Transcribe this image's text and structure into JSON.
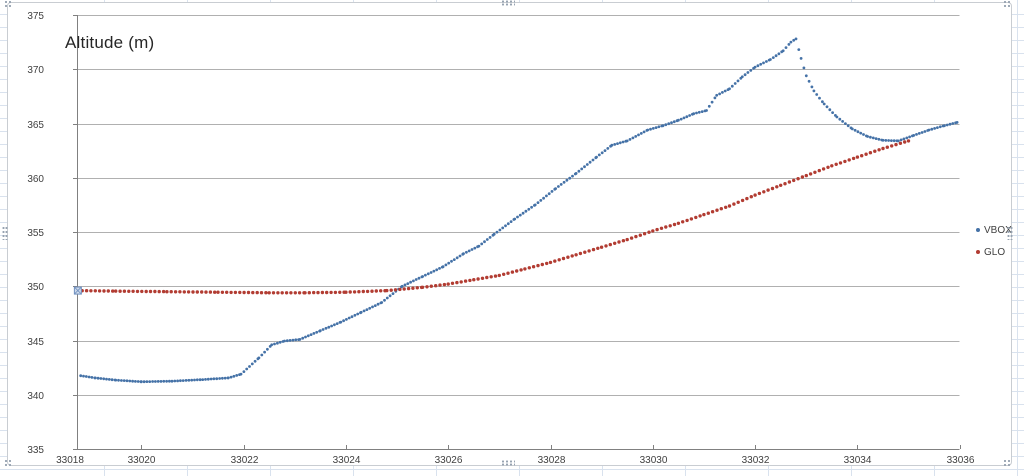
{
  "window": {
    "worksheet_grid_color": "#d9e2ee"
  },
  "chart": {
    "border_color": "#c9cdd2",
    "gridline_color": "#b0b0b0",
    "axis_color": "#808080",
    "tick_label_color": "#404040"
  },
  "chart_data": {
    "type": "scatter",
    "title": "Altitude (m)",
    "xlabel": "",
    "ylabel": "",
    "x_ticks": [
      33018,
      33020,
      33022,
      33024,
      33026,
      33028,
      33030,
      33032,
      33034,
      33036
    ],
    "y_ticks": [
      335,
      340,
      345,
      350,
      355,
      360,
      365,
      370,
      375
    ],
    "xlim": [
      33018,
      33036
    ],
    "ylim": [
      335,
      375
    ],
    "grid": "horizontal-only",
    "legend_position": "right-outside-plot",
    "legend": [
      "VBOX",
      "GLO"
    ],
    "series": [
      {
        "name": "VBOX",
        "color": "#4572a7",
        "marker": "dot",
        "marker_radius": 1.4,
        "point_step": 0.055,
        "anchors": [
          [
            33018.76,
            341.8
          ],
          [
            33019.1,
            341.55
          ],
          [
            33019.5,
            341.35
          ],
          [
            33020.0,
            341.2
          ],
          [
            33020.6,
            341.25
          ],
          [
            33021.2,
            341.4
          ],
          [
            33021.7,
            341.55
          ],
          [
            33021.95,
            341.9
          ],
          [
            33022.3,
            343.4
          ],
          [
            33022.55,
            344.6
          ],
          [
            33022.8,
            344.95
          ],
          [
            33023.1,
            345.1
          ],
          [
            33023.5,
            345.9
          ],
          [
            33023.9,
            346.7
          ],
          [
            33024.3,
            347.6
          ],
          [
            33024.7,
            348.5
          ],
          [
            33025.1,
            350.0
          ],
          [
            33025.5,
            350.9
          ],
          [
            33025.9,
            351.8
          ],
          [
            33026.3,
            353.0
          ],
          [
            33026.6,
            353.7
          ],
          [
            33026.9,
            354.8
          ],
          [
            33027.3,
            356.2
          ],
          [
            33027.7,
            357.5
          ],
          [
            33028.1,
            359.0
          ],
          [
            33028.5,
            360.4
          ],
          [
            33028.9,
            361.9
          ],
          [
            33029.2,
            363.0
          ],
          [
            33029.5,
            363.4
          ],
          [
            33029.9,
            364.4
          ],
          [
            33030.2,
            364.8
          ],
          [
            33030.5,
            365.3
          ],
          [
            33030.8,
            365.9
          ],
          [
            33031.05,
            366.2
          ],
          [
            33031.25,
            367.6
          ],
          [
            33031.5,
            368.2
          ],
          [
            33031.75,
            369.3
          ],
          [
            33032.0,
            370.2
          ],
          [
            33032.3,
            370.9
          ],
          [
            33032.55,
            371.7
          ],
          [
            33032.7,
            372.5
          ],
          [
            33032.8,
            372.8
          ],
          [
            33032.9,
            371.0
          ],
          [
            33033.0,
            369.4
          ],
          [
            33033.15,
            368.0
          ],
          [
            33033.35,
            366.8
          ],
          [
            33033.6,
            365.6
          ],
          [
            33033.9,
            364.5
          ],
          [
            33034.2,
            363.8
          ],
          [
            33034.5,
            363.45
          ],
          [
            33034.8,
            363.4
          ],
          [
            33035.1,
            363.9
          ],
          [
            33035.4,
            364.4
          ],
          [
            33035.7,
            364.8
          ],
          [
            33035.95,
            365.1
          ]
        ]
      },
      {
        "name": "GLO",
        "color": "#b23c32",
        "marker": "dot",
        "marker_radius": 1.7,
        "point_step": 0.085,
        "anchors": [
          [
            33018.76,
            349.6
          ],
          [
            33019.5,
            349.55
          ],
          [
            33020.5,
            349.5
          ],
          [
            33021.5,
            349.45
          ],
          [
            33022.5,
            349.4
          ],
          [
            33023.2,
            349.4
          ],
          [
            33024.0,
            349.45
          ],
          [
            33024.8,
            349.6
          ],
          [
            33025.5,
            349.9
          ],
          [
            33026.0,
            350.2
          ],
          [
            33026.5,
            350.6
          ],
          [
            33027.0,
            351.0
          ],
          [
            33027.5,
            351.6
          ],
          [
            33028.0,
            352.2
          ],
          [
            33028.5,
            352.9
          ],
          [
            33029.0,
            353.6
          ],
          [
            33029.5,
            354.3
          ],
          [
            33030.0,
            355.1
          ],
          [
            33030.5,
            355.8
          ],
          [
            33031.0,
            356.6
          ],
          [
            33031.5,
            357.4
          ],
          [
            33032.0,
            358.4
          ],
          [
            33032.5,
            359.3
          ],
          [
            33033.0,
            360.2
          ],
          [
            33033.5,
            361.1
          ],
          [
            33034.0,
            361.9
          ],
          [
            33034.5,
            362.7
          ],
          [
            33035.0,
            363.4
          ]
        ]
      }
    ],
    "selected_point": {
      "series": "GLO",
      "x": 33018.76,
      "y": 349.6
    }
  }
}
